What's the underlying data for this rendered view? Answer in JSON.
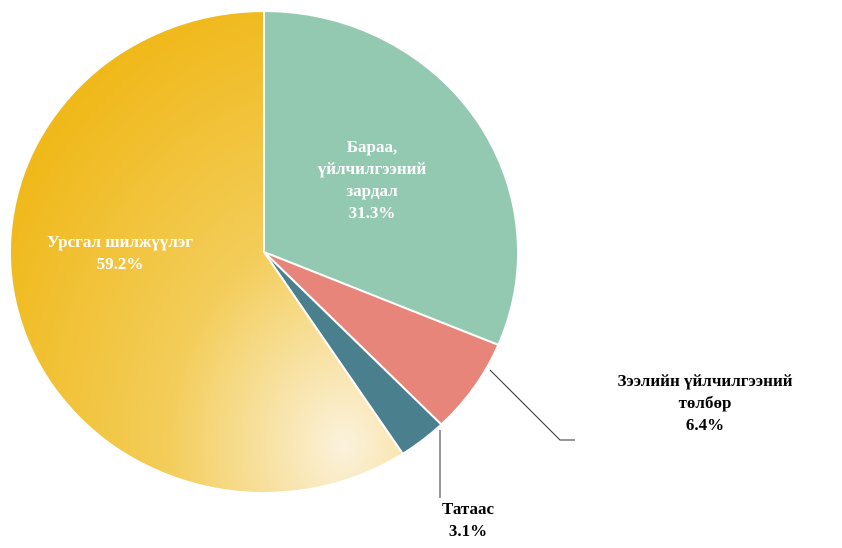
{
  "chart_data": {
    "type": "pie",
    "categories": [
      "Бараа, үйлчилгээний зардал",
      "Зээлийн үйлчилгээний төлбөр",
      "Татаас",
      "Урсгал шилжүүлэг"
    ],
    "values": [
      31.3,
      6.4,
      3.1,
      59.2
    ],
    "value_labels": [
      "31.3%",
      "6.4%",
      "3.1%",
      "59.2%"
    ],
    "colors": [
      "#93c9b1",
      "#e8857a",
      "#4a7f8e",
      "#f0bd2a"
    ]
  }
}
